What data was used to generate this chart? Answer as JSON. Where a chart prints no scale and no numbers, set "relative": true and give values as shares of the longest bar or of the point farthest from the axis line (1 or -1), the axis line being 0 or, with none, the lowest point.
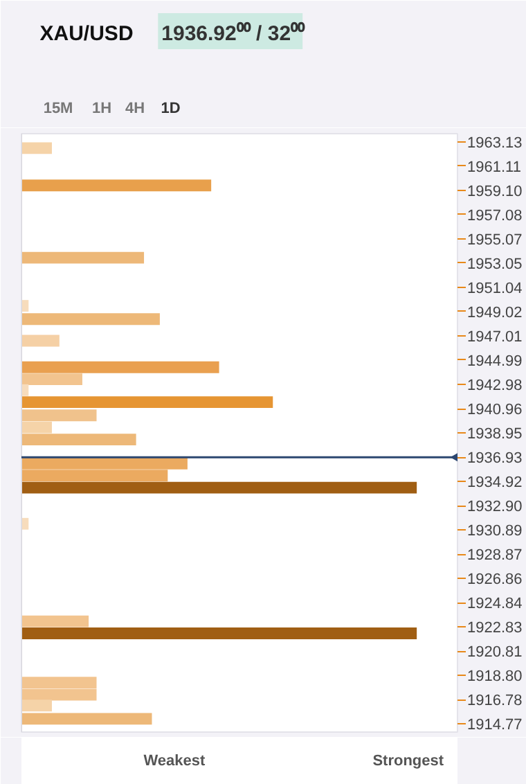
{
  "chart_data": {
    "type": "bar",
    "orientation": "horizontal",
    "relative": true,
    "title": "XAU/USD",
    "subtitle": "1936.92⁰⁰ / 32⁰⁰",
    "annotations": [
      "15M",
      "1H",
      "4H",
      "1D",
      "Weakest",
      "Strongest"
    ],
    "x": [
      1962.6,
      1959.5,
      1953.5,
      1949.5,
      1948.4,
      1946.6,
      1944.4,
      1943.4,
      1942.5,
      1941.5,
      1940.4,
      1939.4,
      1938.4,
      1936.4,
      1935.4,
      1934.4,
      1931.4,
      1923.3,
      1922.3,
      1918.2,
      1917.2,
      1916.3,
      1915.2
    ],
    "values": [
      0.077,
      0.48,
      0.31,
      0.018,
      0.35,
      0.096,
      0.5,
      0.154,
      0.018,
      0.636,
      0.19,
      0.077,
      0.29,
      0.42,
      0.37,
      1,
      0.018,
      0.17,
      1,
      0.19,
      0.19,
      0.077,
      0.33
    ],
    "colors": [
      "#f5d3a8",
      "#e8a04c",
      "#edb878",
      "#f7dcbc",
      "#edb878",
      "#f5d0a5",
      "#e9a050",
      "#f2c48f",
      "#f7dcbc",
      "#e69533",
      "#f0c28c",
      "#f5d3a8",
      "#edb878",
      "#ebaa60",
      "#ebaa60",
      "#a05e13",
      "#f7dcbc",
      "#f2c48f",
      "#a05e13",
      "#f2c48f",
      "#f2c48f",
      "#f5d3a8",
      "#edb878"
    ],
    "ylim": [
      1914.1,
      1963.8
    ],
    "yticks": [
      1963.13,
      1961.11,
      {
        "value": 1959.1,
        "label": "1959.10"
      },
      1957.08,
      1955.07,
      1953.05,
      1951.04,
      1949.02,
      1947.01,
      1944.99,
      1942.98,
      1940.96,
      1938.95,
      1936.93,
      1934.92,
      {
        "value": 1932.9,
        "label": "1932.90"
      },
      1930.89,
      1928.87,
      1926.86,
      1924.84,
      1922.83,
      1920.81,
      {
        "value": 1918.8,
        "label": "1918.80"
      },
      1916.78,
      1914.77
    ],
    "ref_lines": [
      {
        "axis": "y",
        "value": 1936.92,
        "color": "#2c4770"
      }
    ],
    "grid": false
  }
}
